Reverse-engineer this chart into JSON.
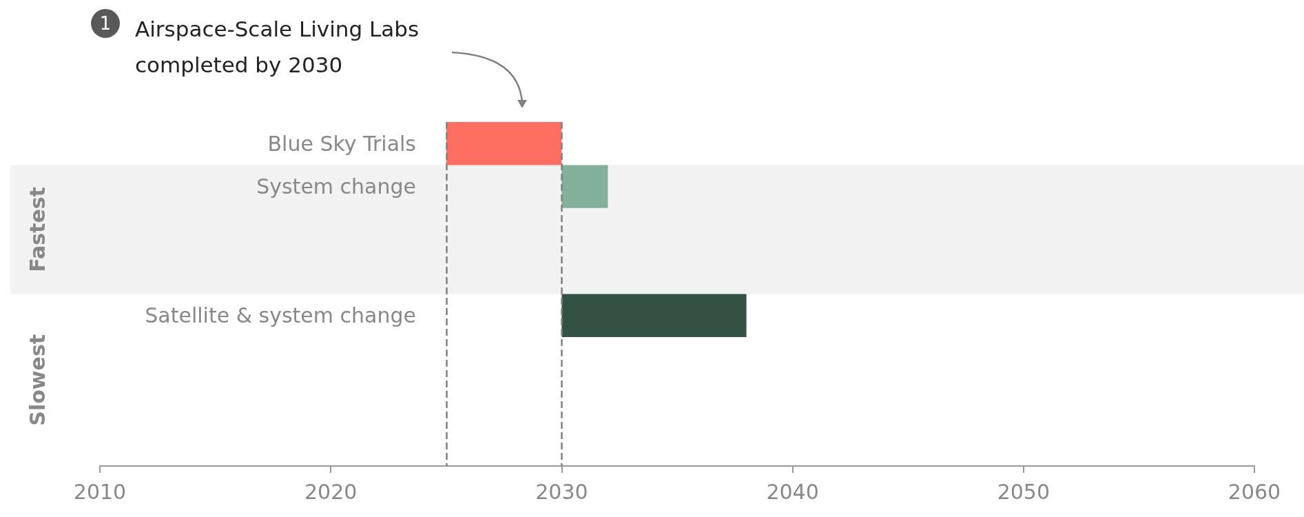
{
  "chart_data": {
    "type": "bar",
    "orientation": "horizontal",
    "categories": [
      "Blue Sky Trials",
      "System change",
      null,
      null,
      "Satellite & system change",
      null,
      null,
      null
    ],
    "values": [
      5,
      2,
      null,
      null,
      8,
      null,
      null,
      null
    ],
    "base": [
      2025,
      2030,
      null,
      null,
      2030,
      null,
      null,
      null
    ],
    "colors": [
      "#ff6f61",
      "#82b09a",
      null,
      null,
      "#345243",
      null,
      null,
      null
    ],
    "xlim": [
      2010,
      2060
    ],
    "xticks": [
      2010,
      2020,
      2030,
      2040,
      2050,
      2060
    ],
    "grid": false,
    "ref_lines": [
      {
        "axis": "x",
        "value": 2025,
        "color": "#808080",
        "line_style": "dashed"
      },
      {
        "axis": "x",
        "value": 2030,
        "color": "#808080",
        "line_style": "dashed"
      }
    ],
    "bands": [
      {
        "axis": "y",
        "from": "System change",
        "to": "Satellite & system change",
        "label": "Fastest",
        "color": "#f2f2f2"
      }
    ],
    "annotations": [
      "1",
      "Airspace-Scale Living Labs\ncompleted by 2030",
      "Slowest"
    ]
  }
}
